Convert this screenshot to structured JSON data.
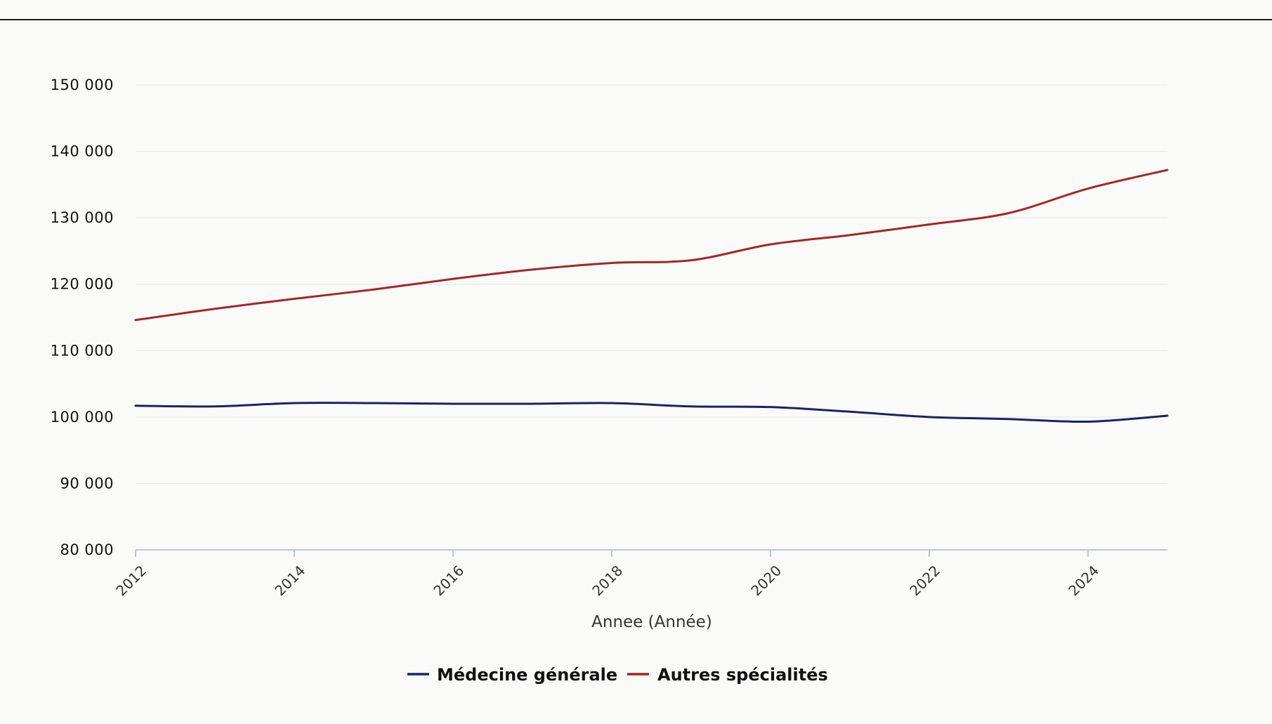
{
  "chart_data": {
    "type": "line",
    "title": "",
    "xlabel": "Annee (Année)",
    "ylabel": "",
    "xlim": [
      2012,
      2025
    ],
    "ylim": [
      80000,
      150000
    ],
    "x_ticks": [
      2012,
      2014,
      2016,
      2018,
      2020,
      2022,
      2024
    ],
    "x_tick_labels": [
      "2012",
      "2014",
      "2016",
      "2018",
      "2020",
      "2022",
      "2024"
    ],
    "y_ticks": [
      80000,
      90000,
      100000,
      110000,
      120000,
      130000,
      140000,
      150000
    ],
    "y_tick_labels": [
      "80 000",
      "90 000",
      "100 000",
      "110 000",
      "120 000",
      "130 000",
      "140 000",
      "150 000"
    ],
    "grid": "horizontal",
    "legend_position": "bottom-center",
    "x": [
      2012,
      2013,
      2014,
      2015,
      2016,
      2017,
      2018,
      2019,
      2020,
      2021,
      2022,
      2023,
      2024,
      2025
    ],
    "series": [
      {
        "name": "Médecine générale",
        "color": "#1a2460",
        "values": [
          101700,
          101600,
          102100,
          102100,
          102000,
          102000,
          102100,
          101600,
          101500,
          100800,
          100000,
          99700,
          99300,
          100200
        ]
      },
      {
        "name": "Autres spécialités",
        "color": "#a3262b",
        "values": [
          114600,
          116300,
          117800,
          119200,
          120800,
          122200,
          123200,
          123600,
          126000,
          127400,
          129000,
          130700,
          134400,
          137200
        ]
      }
    ]
  }
}
